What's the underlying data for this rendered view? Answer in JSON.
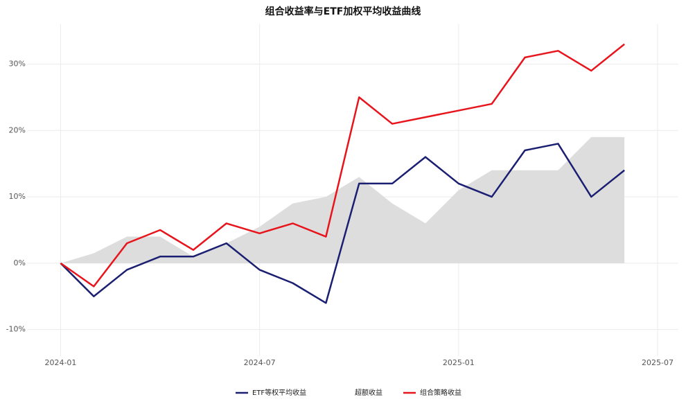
{
  "chart_data": {
    "type": "line",
    "title": "组合收益率与ETF加权平均收益曲线",
    "x": [
      "2024-01",
      "2024-02",
      "2024-03",
      "2024-04",
      "2024-05",
      "2024-06",
      "2024-07",
      "2024-08",
      "2024-09",
      "2024-10",
      "2024-11",
      "2024-12",
      "2025-01",
      "2025-02",
      "2025-03",
      "2025-04",
      "2025-05",
      "2025-06"
    ],
    "series": [
      {
        "name": "ETF等权平均收益",
        "color": "#1a1f71",
        "kind": "line",
        "values": [
          0,
          -5,
          -1,
          1,
          1,
          3,
          -1,
          -3,
          -6,
          12,
          12,
          16,
          12,
          10,
          17,
          18,
          10,
          14
        ]
      },
      {
        "name": "超额收益",
        "color": "#dddddd",
        "kind": "area",
        "values": [
          0,
          1.5,
          4,
          4,
          1,
          3,
          5.5,
          9,
          10,
          13,
          9,
          6,
          11,
          14,
          14,
          14,
          19,
          19
        ]
      },
      {
        "name": "组合策略收益",
        "color": "#e8141c",
        "kind": "line",
        "values": [
          0,
          -3.5,
          3,
          5,
          2,
          6,
          4.5,
          6,
          4,
          25,
          21,
          22,
          23,
          24,
          31,
          32,
          29,
          33
        ]
      }
    ],
    "xlim": [
      "2023-12",
      "2025-07"
    ],
    "xticks": [
      "2024-01",
      "2024-07",
      "2025-01",
      "2025-07"
    ],
    "ylim": [
      -14,
      36
    ],
    "yticks": [
      {
        "value": -10,
        "label": "-10%"
      },
      {
        "value": 0,
        "label": "0%"
      },
      {
        "value": 10,
        "label": "10%"
      },
      {
        "value": 20,
        "label": "20%"
      },
      {
        "value": 30,
        "label": "30%"
      }
    ],
    "grid": true,
    "legend": "bottom"
  }
}
